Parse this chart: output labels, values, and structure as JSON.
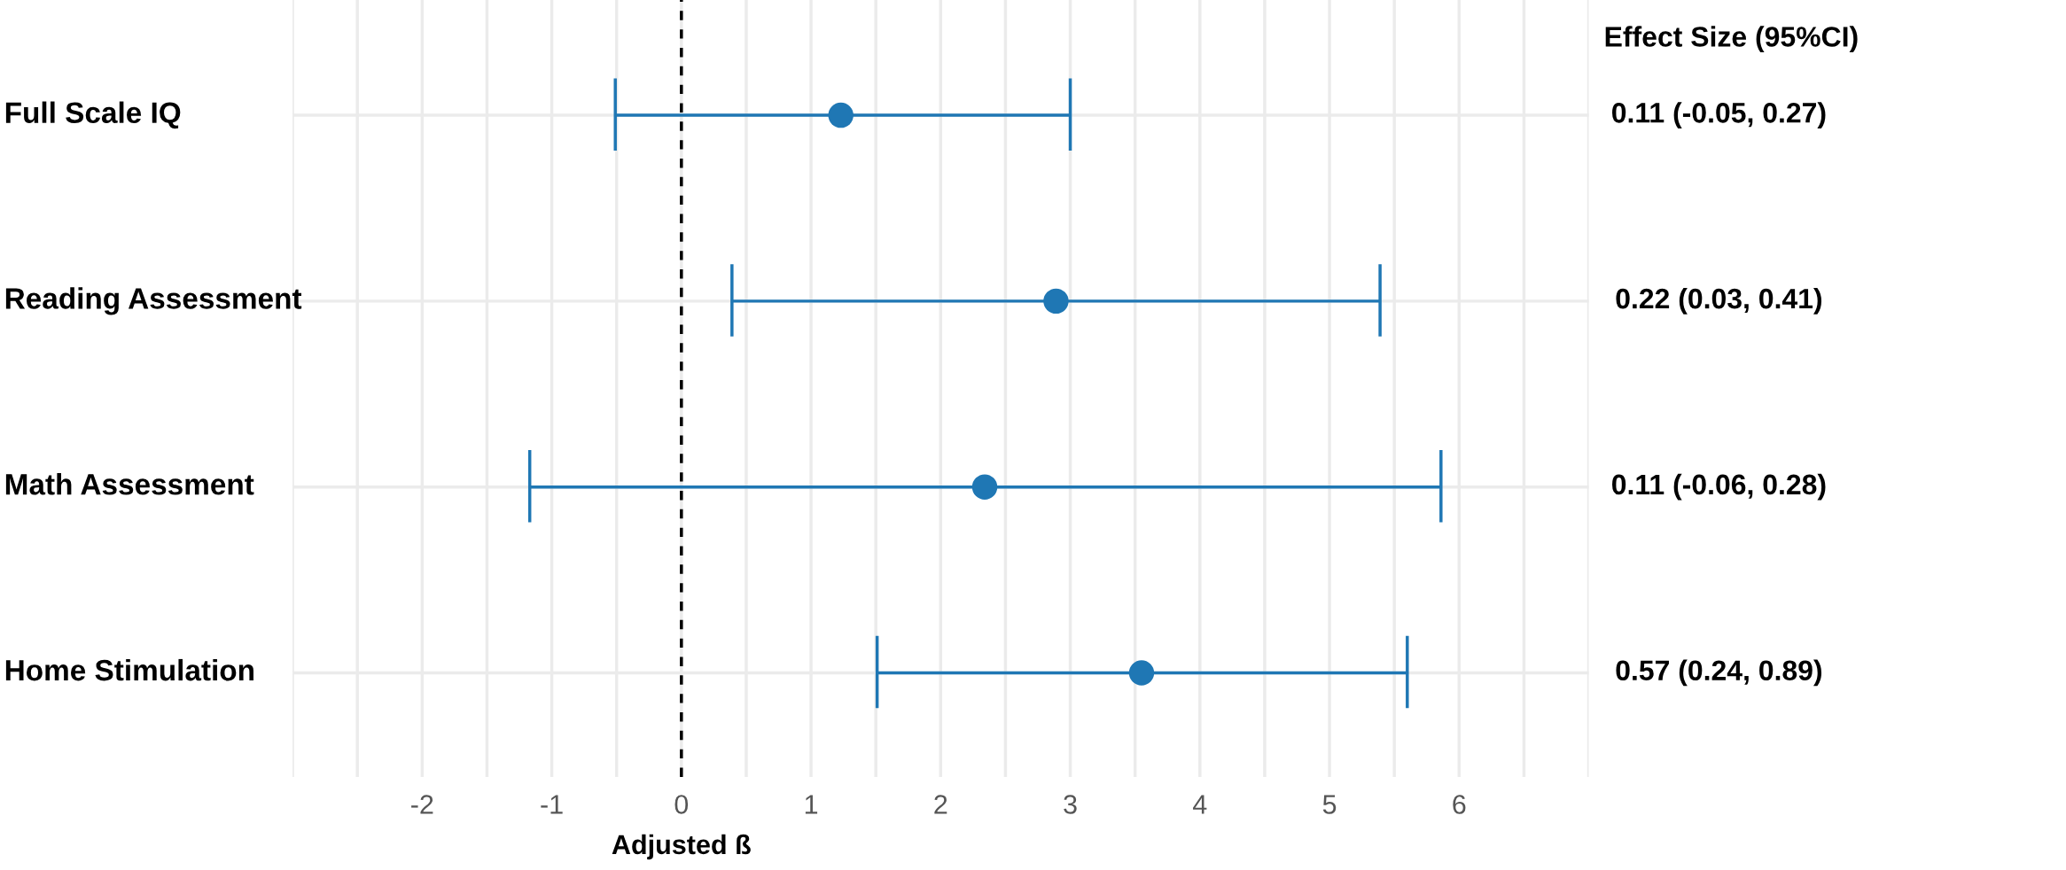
{
  "chart_data": {
    "type": "scatter",
    "orientation": "horizontal",
    "categories": [
      "Full Scale IQ",
      "Reading Assessment",
      "Math Assessment",
      "Home Stimulation"
    ],
    "series": [
      {
        "color": "#1f77b4",
        "values": [
          1.23,
          2.89,
          2.34,
          3.55
        ],
        "errors": [
          [
            -0.51,
            3.0
          ],
          [
            0.39,
            5.39
          ],
          [
            -1.17,
            5.86
          ],
          [
            1.51,
            5.6
          ]
        ]
      }
    ],
    "xlabel": "Adjusted ß",
    "xlim": [
      -3.0,
      7.0
    ],
    "xticks": [
      {
        "value": -3,
        "label": null
      },
      {
        "value": -2.5,
        "label": null
      },
      -2,
      {
        "value": -1.5,
        "label": null
      },
      -1,
      {
        "value": -0.5,
        "label": null
      },
      0,
      {
        "value": 0.5,
        "label": null
      },
      1,
      {
        "value": 1.5,
        "label": null
      },
      2,
      {
        "value": 2.5,
        "label": null
      },
      3,
      {
        "value": 3.5,
        "label": null
      },
      4,
      {
        "value": 4.5,
        "label": null
      },
      5,
      {
        "value": 5.5,
        "label": null
      },
      6,
      {
        "value": 6.5,
        "label": null
      },
      {
        "value": 7,
        "label": null
      }
    ],
    "ref_lines": [
      {
        "axis": "x",
        "value": 0,
        "color": "#000000",
        "line_style": "dashed"
      }
    ],
    "annotations": [
      "Effect Size (95%CI)",
      "0.11 (-0.05, 0.27)",
      "0.22 (0.03, 0.41)",
      "0.11 (-0.06, 0.28)",
      "0.57 (0.24, 0.89)"
    ],
    "grid": true,
    "marker": "circle",
    "legend": false
  }
}
